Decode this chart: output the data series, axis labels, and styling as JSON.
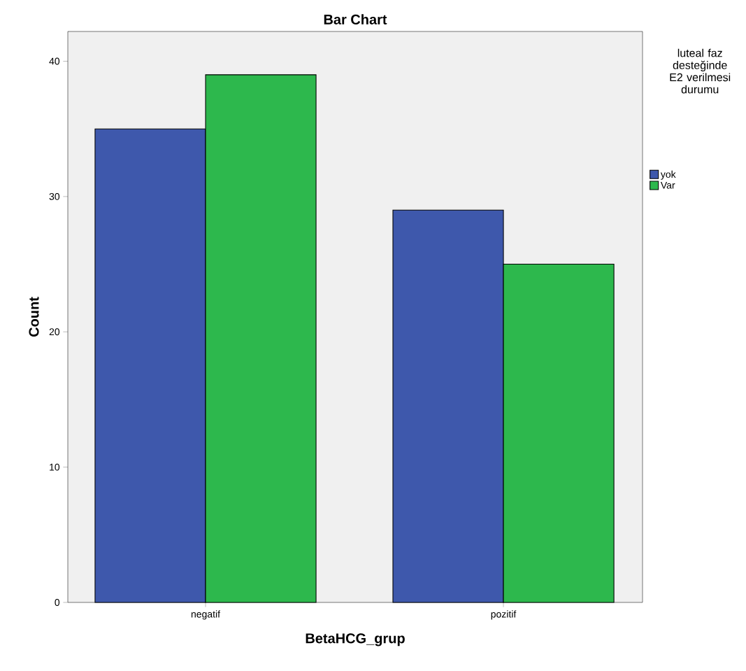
{
  "chart_data": {
    "type": "bar",
    "title": "Bar Chart",
    "xlabel": "BetaHCG_grup",
    "ylabel": "Count",
    "legend_title": "luteal faz desteğinde E2 verilmesi durumu",
    "categories": [
      "negatif",
      "pozitif"
    ],
    "series": [
      {
        "name": "yok",
        "color": "#3e58ac",
        "values": [
          35,
          29
        ]
      },
      {
        "name": "Var",
        "color": "#2db84d",
        "values": [
          39,
          25
        ]
      }
    ],
    "ylim": [
      0,
      42.2
    ],
    "yticks": [
      0,
      10,
      20,
      30,
      40
    ],
    "grid": false,
    "legend": "right"
  }
}
